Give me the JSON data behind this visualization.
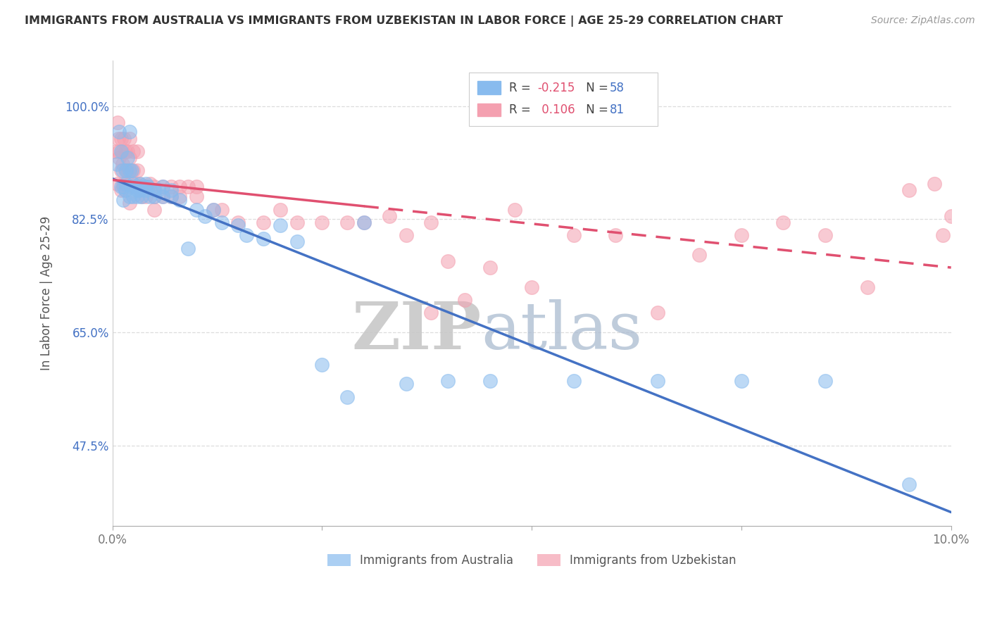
{
  "title": "IMMIGRANTS FROM AUSTRALIA VS IMMIGRANTS FROM UZBEKISTAN IN LABOR FORCE | AGE 25-29 CORRELATION CHART",
  "source": "Source: ZipAtlas.com",
  "ylabel": "In Labor Force | Age 25-29",
  "xlim": [
    0.0,
    0.1
  ],
  "ylim": [
    0.35,
    1.07
  ],
  "yticks": [
    0.475,
    0.65,
    0.825,
    1.0
  ],
  "ytick_labels": [
    "47.5%",
    "65.0%",
    "82.5%",
    "100.0%"
  ],
  "color_australia": "#88bbee",
  "color_uzbekistan": "#f4a0b0",
  "line_australia": "#4472c4",
  "line_uzbekistan": "#e05070",
  "R_australia": -0.215,
  "N_australia": 58,
  "R_uzbekistan": 0.106,
  "N_uzbekistan": 81,
  "australia_x": [
    0.0005,
    0.0008,
    0.001,
    0.001,
    0.0012,
    0.0013,
    0.0013,
    0.0015,
    0.0015,
    0.0016,
    0.0018,
    0.002,
    0.002,
    0.002,
    0.0022,
    0.0023,
    0.0025,
    0.0025,
    0.003,
    0.003,
    0.003,
    0.0032,
    0.0033,
    0.0035,
    0.0038,
    0.004,
    0.004,
    0.0042,
    0.0045,
    0.005,
    0.005,
    0.0055,
    0.006,
    0.006,
    0.007,
    0.007,
    0.008,
    0.009,
    0.01,
    0.011,
    0.012,
    0.013,
    0.015,
    0.016,
    0.018,
    0.02,
    0.022,
    0.025,
    0.028,
    0.03,
    0.035,
    0.04,
    0.045,
    0.055,
    0.065,
    0.075,
    0.085,
    0.095
  ],
  "australia_y": [
    0.91,
    0.96,
    0.93,
    0.875,
    0.9,
    0.875,
    0.855,
    0.87,
    0.88,
    0.9,
    0.92,
    0.96,
    0.9,
    0.86,
    0.875,
    0.9,
    0.88,
    0.86,
    0.875,
    0.87,
    0.86,
    0.88,
    0.87,
    0.86,
    0.875,
    0.88,
    0.87,
    0.875,
    0.86,
    0.87,
    0.86,
    0.87,
    0.875,
    0.86,
    0.86,
    0.87,
    0.855,
    0.78,
    0.84,
    0.83,
    0.84,
    0.82,
    0.815,
    0.8,
    0.795,
    0.815,
    0.79,
    0.6,
    0.55,
    0.82,
    0.57,
    0.575,
    0.575,
    0.575,
    0.575,
    0.575,
    0.575,
    0.415
  ],
  "uzbekistan_x": [
    0.0004,
    0.0005,
    0.0006,
    0.0007,
    0.0008,
    0.0008,
    0.001,
    0.001,
    0.001,
    0.0012,
    0.0012,
    0.0013,
    0.0014,
    0.0015,
    0.0015,
    0.0015,
    0.0016,
    0.0018,
    0.0018,
    0.002,
    0.002,
    0.002,
    0.002,
    0.0022,
    0.0025,
    0.0025,
    0.0026,
    0.0028,
    0.003,
    0.003,
    0.003,
    0.0032,
    0.0033,
    0.0035,
    0.0035,
    0.004,
    0.004,
    0.0042,
    0.0045,
    0.005,
    0.005,
    0.005,
    0.006,
    0.006,
    0.007,
    0.007,
    0.008,
    0.008,
    0.009,
    0.01,
    0.01,
    0.012,
    0.013,
    0.015,
    0.018,
    0.02,
    0.022,
    0.025,
    0.028,
    0.03,
    0.033,
    0.035,
    0.038,
    0.04,
    0.042,
    0.045,
    0.048,
    0.05,
    0.055,
    0.06,
    0.065,
    0.07,
    0.075,
    0.08,
    0.085,
    0.09,
    0.095,
    0.098,
    0.099,
    0.1,
    0.038
  ],
  "uzbekistan_y": [
    0.93,
    0.88,
    0.975,
    0.95,
    0.92,
    0.93,
    0.95,
    0.9,
    0.87,
    0.93,
    0.91,
    0.88,
    0.95,
    0.93,
    0.9,
    0.87,
    0.88,
    0.93,
    0.9,
    0.95,
    0.92,
    0.88,
    0.85,
    0.9,
    0.93,
    0.9,
    0.875,
    0.88,
    0.93,
    0.9,
    0.87,
    0.875,
    0.88,
    0.875,
    0.86,
    0.875,
    0.86,
    0.875,
    0.88,
    0.875,
    0.86,
    0.84,
    0.875,
    0.86,
    0.875,
    0.86,
    0.875,
    0.86,
    0.875,
    0.875,
    0.86,
    0.84,
    0.84,
    0.82,
    0.82,
    0.84,
    0.82,
    0.82,
    0.82,
    0.82,
    0.83,
    0.8,
    0.82,
    0.76,
    0.7,
    0.75,
    0.84,
    0.72,
    0.8,
    0.8,
    0.68,
    0.77,
    0.8,
    0.82,
    0.8,
    0.72,
    0.87,
    0.88,
    0.8,
    0.83,
    0.68
  ],
  "background_color": "#ffffff",
  "grid_color": "#dddddd",
  "watermark_zip_color": "#c8c8c8",
  "watermark_atlas_color": "#a8bbcc"
}
